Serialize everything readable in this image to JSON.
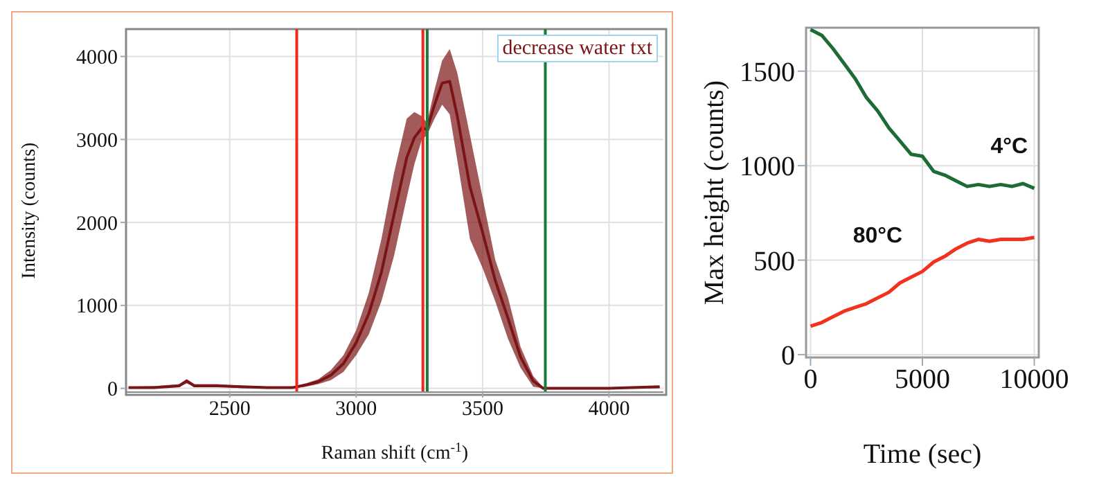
{
  "chart_data": [
    {
      "type": "line",
      "xlabel": "Raman shift (cm$^{-1}$)",
      "ylabel": "Intensity (counts)",
      "xlim": [
        2090,
        4215
      ],
      "xticks": [
        2500,
        3000,
        3500,
        4000
      ],
      "ylim": [
        -45,
        4330
      ],
      "yticks": [
        0,
        1000,
        2000,
        3000,
        4000
      ],
      "grid": true,
      "marker": "none",
      "line_style": "solid",
      "annotations": [
        "decrease water txt"
      ],
      "ref_lines": [
        {
          "axis": "x",
          "value": 2765,
          "color": "#f0281e"
        },
        {
          "axis": "x",
          "value": 3264,
          "color": "#f0281e"
        },
        {
          "axis": "x",
          "value": 3281,
          "color": "#1a7a3a"
        },
        {
          "axis": "x",
          "value": 3748,
          "color": "#1a7a3a"
        }
      ],
      "x": [
        2100,
        2200,
        2300,
        2330,
        2360,
        2450,
        2550,
        2650,
        2750,
        2800,
        2850,
        2900,
        2950,
        3000,
        3050,
        3100,
        3150,
        3200,
        3230,
        3260,
        3280,
        3310,
        3340,
        3370,
        3400,
        3450,
        3500,
        3550,
        3600,
        3650,
        3700,
        3740,
        3800,
        4000,
        4200
      ],
      "series": [
        {
          "color": "#7b1416",
          "values": [
            10,
            10,
            30,
            90,
            30,
            30,
            20,
            10,
            10,
            40,
            80,
            160,
            300,
            550,
            900,
            1400,
            2100,
            2780,
            3020,
            3140,
            3120,
            3420,
            3680,
            3700,
            3280,
            2430,
            1880,
            1300,
            850,
            380,
            90,
            0,
            0,
            0,
            20
          ],
          "lower": [
            0,
            0,
            20,
            60,
            20,
            20,
            0,
            0,
            0,
            20,
            50,
            100,
            200,
            400,
            650,
            1050,
            1600,
            2300,
            2700,
            3000,
            3050,
            3250,
            3420,
            3300,
            2750,
            1800,
            1450,
            1050,
            600,
            250,
            20,
            0,
            0,
            0,
            0
          ],
          "upper": [
            20,
            25,
            50,
            110,
            50,
            50,
            30,
            20,
            20,
            60,
            110,
            220,
            400,
            700,
            1150,
            1800,
            2600,
            3250,
            3330,
            3280,
            3200,
            3600,
            3950,
            4090,
            3800,
            3050,
            2300,
            1550,
            1100,
            500,
            150,
            10,
            10,
            10,
            30
          ]
        }
      ]
    },
    {
      "type": "line",
      "xlabel": "Time (sec)",
      "ylabel": "Max height (counts)",
      "xlim": [
        -200,
        10200
      ],
      "xticks": [
        0,
        5000,
        10000
      ],
      "ylim": [
        -15,
        1730
      ],
      "yticks": [
        0,
        500,
        1000,
        1500
      ],
      "grid": true,
      "marker": "none",
      "line_style": "solid",
      "x": [
        0,
        500,
        1000,
        1500,
        2000,
        2500,
        3000,
        3500,
        4000,
        4500,
        5000,
        5500,
        6000,
        6500,
        7000,
        7500,
        8000,
        8500,
        9000,
        9500,
        10000
      ],
      "series": [
        {
          "name": "4°C",
          "color": "#1d6b35",
          "values": [
            1720,
            1690,
            1620,
            1540,
            1460,
            1360,
            1290,
            1200,
            1130,
            1060,
            1050,
            970,
            950,
            920,
            890,
            900,
            890,
            900,
            890,
            905,
            880
          ]
        },
        {
          "name": "80°C",
          "color": "#f0321e",
          "values": [
            150,
            170,
            200,
            230,
            250,
            270,
            300,
            330,
            380,
            410,
            440,
            490,
            520,
            560,
            590,
            610,
            600,
            610,
            610,
            610,
            620
          ]
        }
      ]
    }
  ]
}
